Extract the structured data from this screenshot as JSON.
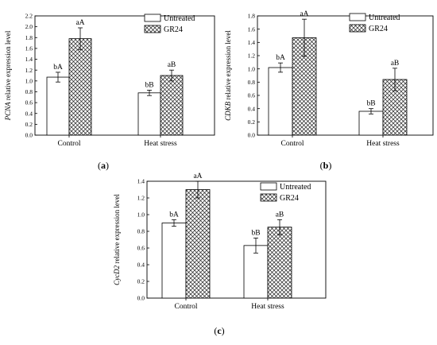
{
  "legend": {
    "untreated": "Untreated",
    "gr24": "GR24"
  },
  "chart_data": [
    {
      "type": "bar",
      "panel": "(a)",
      "panel_letter": "a",
      "ylabel_gene": "PCNA",
      "ylabel_rest": " relative expression level",
      "categories": [
        "Control",
        "Heat stress"
      ],
      "ylim": [
        0,
        2.2
      ],
      "yticks": [
        0,
        0.2,
        0.4,
        0.6,
        0.8,
        1.0,
        1.2,
        1.4,
        1.6,
        1.8,
        2.0,
        2.2
      ],
      "series": [
        {
          "name": "Untreated",
          "values": [
            1.07,
            0.78
          ],
          "errors": [
            0.09,
            0.05
          ],
          "labels": [
            "bA",
            "bB"
          ]
        },
        {
          "name": "GR24",
          "values": [
            1.78,
            1.1
          ],
          "errors": [
            0.2,
            0.1
          ],
          "labels": [
            "aA",
            "aB"
          ]
        }
      ],
      "legend_position": "top-right"
    },
    {
      "type": "bar",
      "panel": "(b)",
      "panel_letter": "b",
      "ylabel_gene": "CDKB",
      "ylabel_rest": " relative expression level",
      "categories": [
        "Control",
        "Heat stress"
      ],
      "ylim": [
        0,
        1.8
      ],
      "yticks": [
        0,
        0.2,
        0.4,
        0.6,
        0.8,
        1.0,
        1.2,
        1.4,
        1.6,
        1.8
      ],
      "series": [
        {
          "name": "Untreated",
          "values": [
            1.02,
            0.36
          ],
          "errors": [
            0.07,
            0.04
          ],
          "labels": [
            "bA",
            "bB"
          ]
        },
        {
          "name": "GR24",
          "values": [
            1.47,
            0.84
          ],
          "errors": [
            0.28,
            0.17
          ],
          "labels": [
            "aA",
            "aB"
          ]
        }
      ],
      "legend_position": "top-right"
    },
    {
      "type": "bar",
      "panel": "(c)",
      "panel_letter": "c",
      "ylabel_gene": "CycD2",
      "ylabel_rest": " relative expression level",
      "categories": [
        "Control",
        "Heat stress"
      ],
      "ylim": [
        0,
        1.4
      ],
      "yticks": [
        0,
        0.2,
        0.4,
        0.6,
        0.8,
        1.0,
        1.2,
        1.4
      ],
      "series": [
        {
          "name": "Untreated",
          "values": [
            0.9,
            0.63
          ],
          "errors": [
            0.04,
            0.09
          ],
          "labels": [
            "bA",
            "bB"
          ]
        },
        {
          "name": "GR24",
          "values": [
            1.3,
            0.85
          ],
          "errors": [
            0.1,
            0.09
          ],
          "labels": [
            "aA",
            "aB"
          ]
        }
      ],
      "legend_position": "top-right"
    }
  ]
}
